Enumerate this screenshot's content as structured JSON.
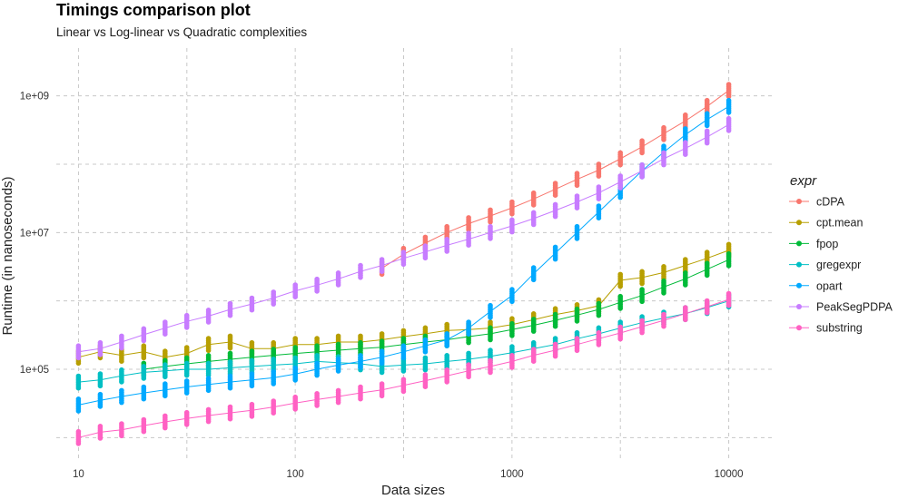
{
  "chart_data": {
    "type": "scatter",
    "title": "Timings comparison plot",
    "subtitle": "Linear vs Log-linear vs Quadratic complexities",
    "xlabel": "Data sizes",
    "ylabel": "Runtime (in nanoseconds)",
    "x_scale": "log10",
    "y_scale": "log10",
    "xlim": [
      7.9,
      15800
    ],
    "ylim": [
      5000,
      5000000000
    ],
    "x_ticks": [
      {
        "value": 10,
        "label": "10"
      },
      {
        "value": 100,
        "label": "100"
      },
      {
        "value": 1000,
        "label": "1000"
      },
      {
        "value": 10000,
        "label": "10000"
      }
    ],
    "y_ticks": [
      {
        "value": 100000,
        "label": "1e+05"
      },
      {
        "value": 10000000,
        "label": "1e+07"
      },
      {
        "value": 1000000000,
        "label": "1e+09"
      }
    ],
    "legend_title": "expr",
    "legend_position": "right",
    "grid": true,
    "x": [
      10,
      12.6,
      15.8,
      20,
      25.1,
      31.6,
      39.8,
      50.1,
      63.1,
      79.4,
      100,
      126,
      158,
      200,
      251,
      316,
      398,
      501,
      631,
      794,
      1000,
      1259,
      1585,
      1995,
      2512,
      3162,
      3981,
      5012,
      6310,
      7943,
      10000
    ],
    "series": [
      {
        "name": "cDPA",
        "color": "#F8766D",
        "values": [
          null,
          null,
          null,
          null,
          null,
          null,
          null,
          null,
          null,
          null,
          null,
          null,
          null,
          null,
          3000000,
          4800000,
          7000000,
          10000000,
          13500000,
          17500000,
          23000000,
          31000000,
          43000000,
          60000000,
          82000000,
          120000000,
          180000000,
          280000000,
          430000000,
          700000000,
          1200000000
        ]
      },
      {
        "name": "cpt.mean",
        "color": "#B79F00",
        "values": [
          150000,
          180000,
          160000,
          180000,
          150000,
          170000,
          230000,
          250000,
          200000,
          200000,
          230000,
          230000,
          250000,
          250000,
          270000,
          300000,
          330000,
          370000,
          380000,
          400000,
          450000,
          530000,
          630000,
          720000,
          850000,
          2000000,
          2200000,
          2600000,
          3300000,
          4200000,
          5500000
        ]
      },
      {
        "name": "fpop",
        "color": "#00BA38",
        "values": [
          null,
          null,
          null,
          100000,
          110000,
          120000,
          130000,
          140000,
          150000,
          160000,
          170000,
          180000,
          190000,
          200000,
          210000,
          230000,
          250000,
          270000,
          300000,
          330000,
          380000,
          440000,
          520000,
          620000,
          750000,
          950000,
          1200000,
          1600000,
          2100000,
          2900000,
          4000000
        ]
      },
      {
        "name": "gregexpr",
        "color": "#00BFC4",
        "values": [
          65000,
          70000,
          80000,
          90000,
          95000,
          100000,
          100000,
          105000,
          110000,
          115000,
          120000,
          130000,
          125000,
          120000,
          110000,
          115000,
          120000,
          130000,
          140000,
          155000,
          175000,
          200000,
          230000,
          280000,
          330000,
          400000,
          480000,
          560000,
          650000,
          800000,
          1000000
        ]
      },
      {
        "name": "opart",
        "color": "#00A9FF",
        "values": [
          30000,
          35000,
          40000,
          45000,
          50000,
          55000,
          60000,
          65000,
          70000,
          75000,
          85000,
          100000,
          115000,
          130000,
          150000,
          180000,
          220000,
          270000,
          400000,
          700000,
          1200000,
          2500000,
          5000000,
          10000000,
          20000000,
          40000000,
          80000000,
          150000000,
          270000000,
          450000000,
          700000000
        ]
      },
      {
        "name": "PeakSegPDPA",
        "color": "#C77CFF",
        "values": [
          180000,
          200000,
          250000,
          320000,
          400000,
          500000,
          600000,
          750000,
          900000,
          1100000,
          1400000,
          1700000,
          2100000,
          2700000,
          3300000,
          4200000,
          5200000,
          6500000,
          8000000,
          10000000,
          12500000,
          16000000,
          21000000,
          28000000,
          38000000,
          55000000,
          80000000,
          120000000,
          170000000,
          250000000,
          380000000
        ]
      },
      {
        "name": "substring",
        "color": "#FF61C3",
        "values": [
          10000,
          12000,
          13000,
          15000,
          17000,
          19000,
          21000,
          23000,
          25000,
          28000,
          32000,
          36000,
          40000,
          45000,
          50000,
          58000,
          68000,
          80000,
          95000,
          110000,
          130000,
          160000,
          190000,
          230000,
          280000,
          340000,
          420000,
          520000,
          650000,
          820000,
          1050000
        ]
      }
    ]
  }
}
